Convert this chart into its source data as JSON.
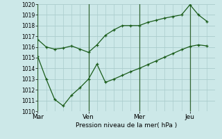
{
  "background_color": "#cce8e8",
  "grid_color": "#aacccc",
  "vline_color": "#336633",
  "line_color": "#1a5c1a",
  "xlabel": "Pression niveau de la mer( hPa )",
  "ylim": [
    1010,
    1020
  ],
  "yticks": [
    1010,
    1011,
    1012,
    1013,
    1014,
    1015,
    1016,
    1017,
    1018,
    1019,
    1020
  ],
  "xtick_labels": [
    "Mar",
    "Ven",
    "Mer",
    "Jeu"
  ],
  "xtick_positions": [
    0,
    3,
    6,
    9
  ],
  "xlim": [
    0,
    10.5
  ],
  "line1_x": [
    0,
    0.5,
    1.0,
    1.5,
    2.0,
    2.5,
    3.0,
    3.5,
    4.0,
    4.5,
    5.0,
    5.5,
    6.0,
    6.5,
    7.0,
    7.5,
    8.0,
    8.5,
    9.0,
    9.5,
    10.0
  ],
  "line1_y": [
    1016.7,
    1016.0,
    1015.8,
    1015.9,
    1016.1,
    1015.8,
    1015.5,
    1016.2,
    1017.1,
    1017.6,
    1018.0,
    1018.0,
    1018.0,
    1018.3,
    1018.5,
    1018.7,
    1018.85,
    1019.0,
    1019.95,
    1019.0,
    1018.4
  ],
  "line2_x": [
    0,
    0.5,
    1.0,
    1.5,
    2.0,
    2.5,
    3.0,
    3.5,
    4.0,
    4.5,
    5.0,
    5.5,
    6.0,
    6.5,
    7.0,
    7.5,
    8.0,
    8.5,
    9.0,
    9.5,
    10.0
  ],
  "line2_y": [
    1015.1,
    1013.0,
    1011.1,
    1010.5,
    1011.5,
    1012.2,
    1013.0,
    1014.4,
    1012.7,
    1013.0,
    1013.35,
    1013.7,
    1014.0,
    1014.35,
    1014.7,
    1015.05,
    1015.4,
    1015.75,
    1016.05,
    1016.2,
    1016.1
  ]
}
